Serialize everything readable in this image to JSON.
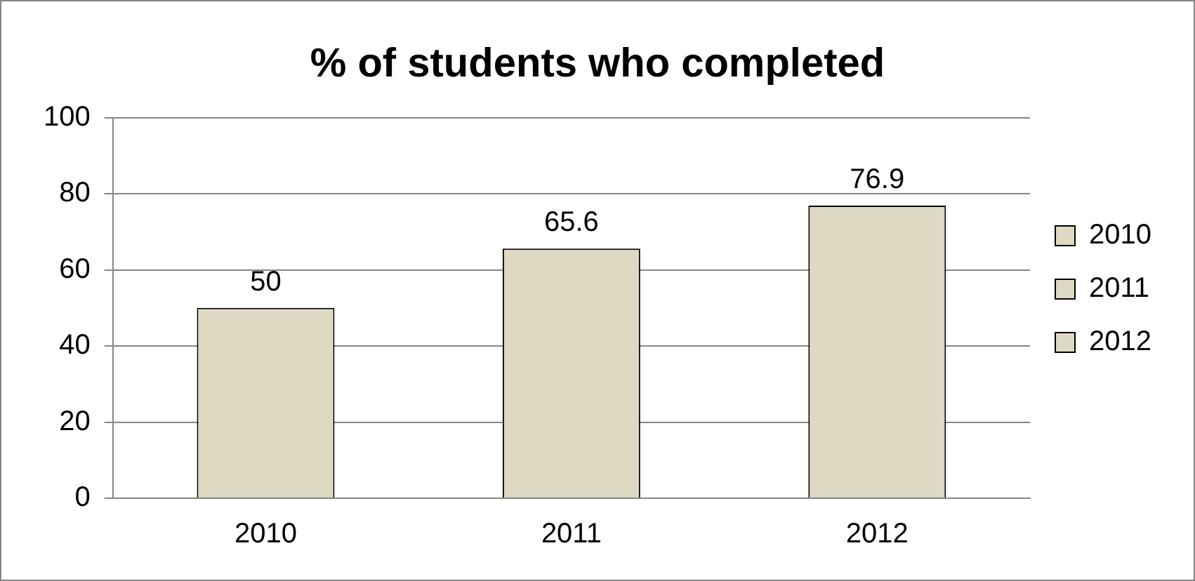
{
  "chart_data": {
    "type": "bar",
    "title": "% of students who completed",
    "categories": [
      "2010",
      "2011",
      "2012"
    ],
    "series": [
      {
        "name": "2010",
        "color": "#ddd9c3",
        "values": [
          50,
          null,
          null
        ]
      },
      {
        "name": "2011",
        "color": "#ddd9c3",
        "values": [
          null,
          65.6,
          null
        ]
      },
      {
        "name": "2012",
        "color": "#ddd9c3",
        "values": [
          null,
          null,
          76.9
        ]
      }
    ],
    "ylim": [
      0,
      100
    ],
    "yticks": [
      0,
      20,
      40,
      60,
      80,
      100
    ],
    "grid": "y",
    "legend": "right",
    "data_labels": true
  }
}
